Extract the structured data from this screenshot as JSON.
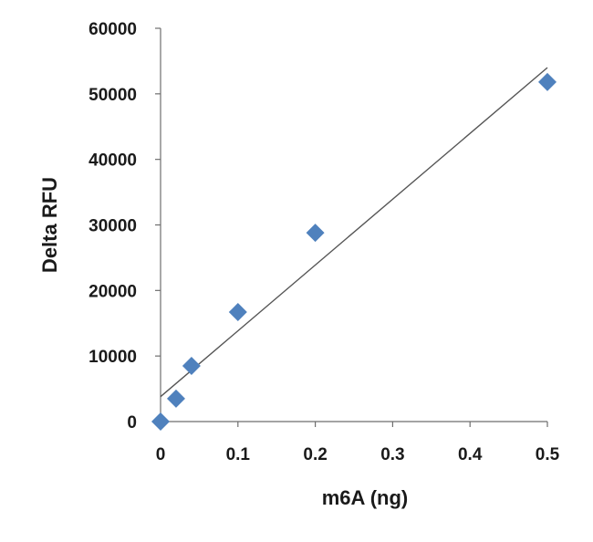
{
  "chart_data": {
    "type": "scatter",
    "title": "",
    "xlabel": "m6A (ng)",
    "ylabel": "Delta RFU",
    "xlim": [
      0,
      0.5
    ],
    "ylim": [
      0,
      60000
    ],
    "x_ticks": [
      "0",
      "0.1",
      "0.2",
      "0.3",
      "0.4",
      "0.5"
    ],
    "y_ticks": [
      "0",
      "10000",
      "20000",
      "30000",
      "40000",
      "50000",
      "60000"
    ],
    "grid": false,
    "legend": "none",
    "marker": "diamond",
    "marker_color": "#4f81bd",
    "series": [
      {
        "x": [
          0,
          0.02,
          0.04,
          0.1,
          0.2,
          0.5
        ],
        "y": [
          0,
          3500,
          8500,
          16700,
          28800,
          51800
        ]
      }
    ],
    "trendline": {
      "type": "linear",
      "color": "#555555",
      "start": [
        0,
        3800
      ],
      "end": [
        0.5,
        54000
      ]
    }
  }
}
